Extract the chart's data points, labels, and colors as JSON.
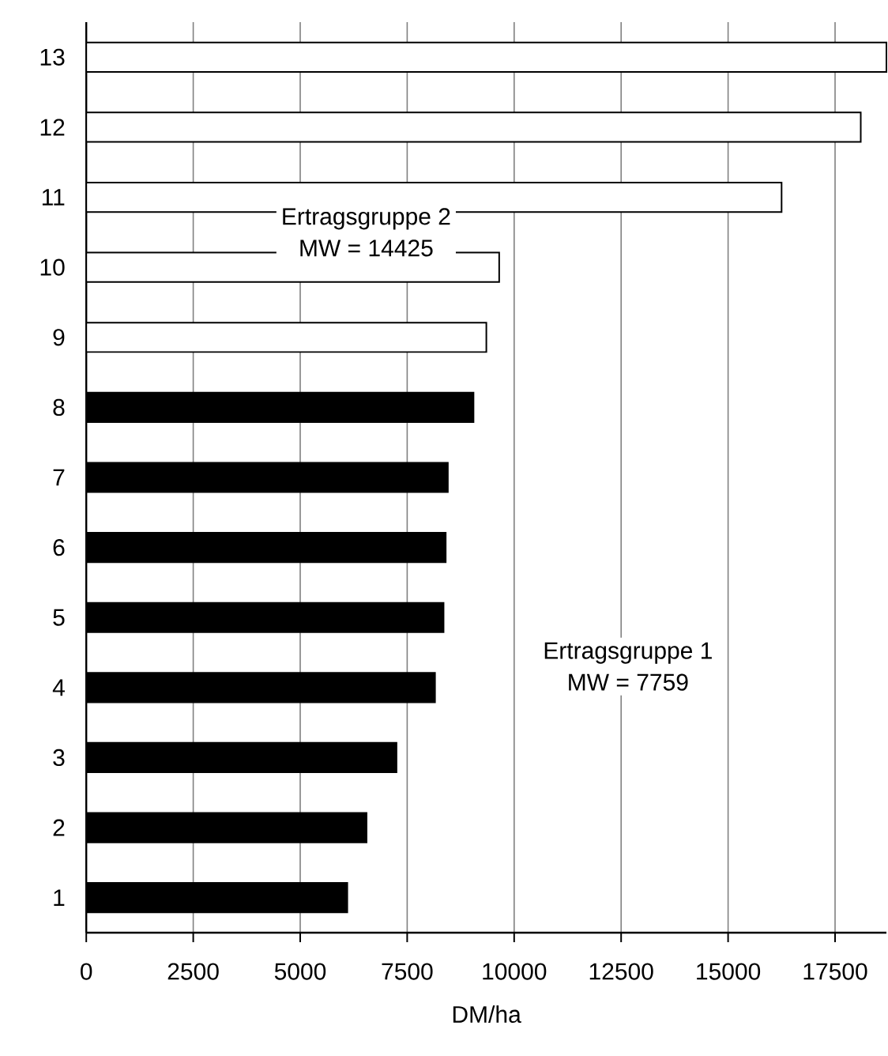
{
  "chart_data": {
    "type": "bar",
    "orientation": "horizontal",
    "xlabel": "DM/ha",
    "categories": [
      "13",
      "12",
      "11",
      "10",
      "9",
      "8",
      "7",
      "6",
      "5",
      "4",
      "3",
      "2",
      "1"
    ],
    "series": [
      {
        "color": "#ffffff",
        "values": [
          18700,
          18100,
          16250,
          9650,
          9350,
          null,
          null,
          null,
          null,
          null,
          null,
          null,
          null
        ]
      },
      {
        "color": "#000000",
        "values": [
          null,
          null,
          null,
          null,
          null,
          9050,
          8450,
          8400,
          8350,
          8150,
          7250,
          6550,
          6100
        ]
      }
    ],
    "xlim": [
      0,
      18700
    ],
    "xticks": [
      0,
      2500,
      5000,
      7500,
      10000,
      12500,
      15000,
      17500
    ],
    "grid": "x",
    "annotations": [
      "Ertragsgruppe 2",
      "MW = 14425",
      "Ertragsgruppe 1",
      "MW = 7759"
    ]
  }
}
